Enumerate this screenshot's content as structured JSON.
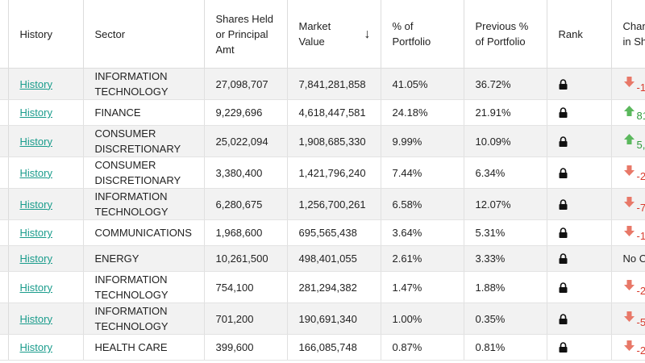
{
  "table": {
    "headers": {
      "history": "History",
      "sector": "Sector",
      "shares": "Shares Held or Principal Amt",
      "market_value": "Market Value",
      "pct_portfolio": "% of Portfolio",
      "prev_pct": "Previous % of Portfolio",
      "rank": "Rank",
      "change": "Change in Shares"
    },
    "sort_icon": "arrow-down-icon",
    "colors": {
      "link": "#1a9c8c",
      "down": "#d83b2e",
      "up": "#2f9b3b",
      "stripe": "#f2f2f2"
    },
    "rows": [
      {
        "history": "History",
        "sector": "INFORMATION TECHNOLOGY",
        "shares": "27,098,707",
        "market_value": "7,841,281,858",
        "pct": "41.05%",
        "prev_pct": "36.72%",
        "change_dir": "down",
        "change_text": "-1"
      },
      {
        "history": "History",
        "sector": "FINANCE",
        "shares": "9,229,696",
        "market_value": "4,618,447,581",
        "pct": "24.18%",
        "prev_pct": "21.91%",
        "change_dir": "up",
        "change_text": "81"
      },
      {
        "history": "History",
        "sector": "CONSUMER DISCRETIONARY",
        "shares": "25,022,094",
        "market_value": "1,908,685,330",
        "pct": "9.99%",
        "prev_pct": "10.09%",
        "change_dir": "up",
        "change_text": "5,"
      },
      {
        "history": "History",
        "sector": "CONSUMER DISCRETIONARY",
        "shares": "3,380,400",
        "market_value": "1,421,796,240",
        "pct": "7.44%",
        "prev_pct": "6.34%",
        "change_dir": "down",
        "change_text": "-2"
      },
      {
        "history": "History",
        "sector": "INFORMATION TECHNOLOGY",
        "shares": "6,280,675",
        "market_value": "1,256,700,261",
        "pct": "6.58%",
        "prev_pct": "12.07%",
        "change_dir": "down",
        "change_text": "-7"
      },
      {
        "history": "History",
        "sector": "COMMUNICATIONS",
        "shares": "1,968,600",
        "market_value": "695,565,438",
        "pct": "3.64%",
        "prev_pct": "5.31%",
        "change_dir": "down",
        "change_text": "-1"
      },
      {
        "history": "History",
        "sector": "ENERGY",
        "shares": "10,261,500",
        "market_value": "498,401,055",
        "pct": "2.61%",
        "prev_pct": "3.33%",
        "change_dir": "none",
        "change_text": "No C"
      },
      {
        "history": "History",
        "sector": "INFORMATION TECHNOLOGY",
        "shares": "754,100",
        "market_value": "281,294,382",
        "pct": "1.47%",
        "prev_pct": "1.88%",
        "change_dir": "down",
        "change_text": "-2"
      },
      {
        "history": "History",
        "sector": "INFORMATION TECHNOLOGY",
        "shares": "701,200",
        "market_value": "190,691,340",
        "pct": "1.00%",
        "prev_pct": "0.35%",
        "change_dir": "down",
        "change_text": "-5"
      },
      {
        "history": "History",
        "sector": "HEALTH CARE",
        "shares": "399,600",
        "market_value": "166,085,748",
        "pct": "0.87%",
        "prev_pct": "0.81%",
        "change_dir": "down",
        "change_text": "-2"
      }
    ]
  }
}
